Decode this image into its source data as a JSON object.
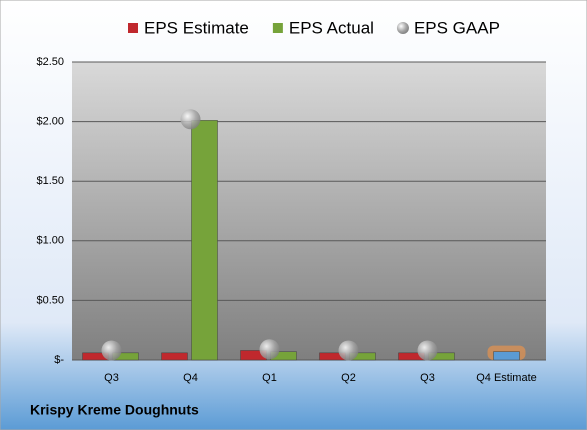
{
  "chart_data": {
    "type": "bar",
    "title": "Krispy Kreme Doughnuts",
    "categories": [
      "Q3",
      "Q4",
      "Q1",
      "Q2",
      "Q3",
      "Q4 Estimate"
    ],
    "series": [
      {
        "name": "EPS Estimate",
        "color": "#c0282d",
        "values": [
          0.06,
          0.06,
          0.08,
          0.06,
          0.06,
          0.07
        ],
        "colors": [
          "#c0282d",
          "#c0282d",
          "#c0282d",
          "#c0282d",
          "#c0282d",
          "#5b9bd5"
        ]
      },
      {
        "name": "EPS Actual",
        "color": "#76a33a",
        "values": [
          0.06,
          2.01,
          0.07,
          0.06,
          0.06,
          null
        ]
      },
      {
        "name": "EPS GAAP",
        "color": "#a6a6a6",
        "values": [
          0.08,
          2.02,
          0.09,
          0.08,
          0.08,
          null
        ]
      }
    ],
    "ylim": [
      0,
      2.5
    ],
    "yticks": [
      {
        "value": 0,
        "label": "$-"
      },
      {
        "value": 0.5,
        "label": "$0.50"
      },
      {
        "value": 1,
        "label": "$1.00"
      },
      {
        "value": 1.5,
        "label": "$1.50"
      },
      {
        "value": 2,
        "label": "$2.00"
      },
      {
        "value": 2.5,
        "label": "$2.50"
      }
    ],
    "grid": true,
    "legend": "top"
  }
}
